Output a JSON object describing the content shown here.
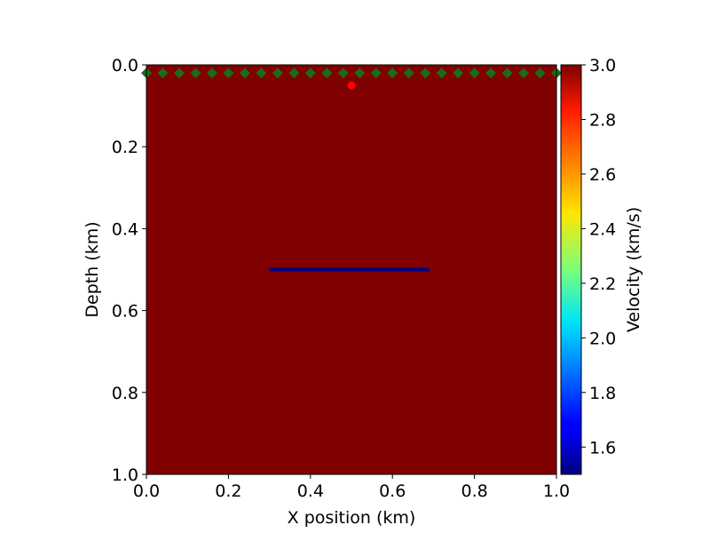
{
  "chart_data": {
    "type": "heatmap",
    "title": "",
    "xlabel": "X position (km)",
    "ylabel": "Depth (km)",
    "xlim": [
      0.0,
      1.0
    ],
    "ylim": [
      1.0,
      0.0
    ],
    "x_ticks": [
      "0.0",
      "0.2",
      "0.4",
      "0.6",
      "0.8",
      "1.0"
    ],
    "y_ticks": [
      "0.0",
      "0.2",
      "0.4",
      "0.6",
      "0.8",
      "1.0"
    ],
    "grid": false,
    "colormap": "jet",
    "background_velocity": 3.0,
    "anomaly": {
      "x_start": 0.3,
      "x_end": 0.69,
      "depth": 0.5,
      "velocity": 1.5
    },
    "source": {
      "x": 0.5,
      "depth": 0.05,
      "color": "#ff0000"
    },
    "receivers": {
      "depth": 0.02,
      "color": "#1a6b1a",
      "x": [
        0.0,
        0.04,
        0.08,
        0.12,
        0.16,
        0.2,
        0.24,
        0.28,
        0.32,
        0.36,
        0.4,
        0.44,
        0.48,
        0.52,
        0.56,
        0.6,
        0.64,
        0.68,
        0.72,
        0.76,
        0.8,
        0.84,
        0.88,
        0.92,
        0.96,
        1.0
      ]
    },
    "colorbar": {
      "label": "Velocity (km/s)",
      "min": 1.5,
      "max": 3.0,
      "ticks": [
        "1.6",
        "1.8",
        "2.0",
        "2.2",
        "2.4",
        "2.6",
        "2.8",
        "3.0"
      ]
    }
  }
}
